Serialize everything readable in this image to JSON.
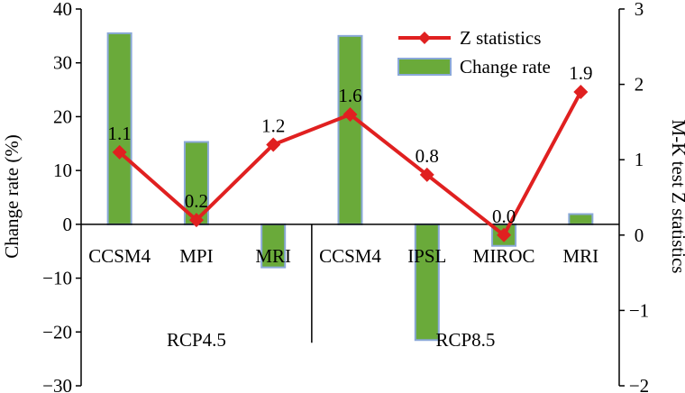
{
  "chart_data": {
    "type": "bar+line",
    "categories": [
      "CCSM4",
      "MPI",
      "MRI",
      "CCSM4",
      "IPSL",
      "MIROC",
      "MRI"
    ],
    "groups": [
      {
        "label": "RCP4.5",
        "span": [
          0,
          2
        ]
      },
      {
        "label": "RCP8.5",
        "span": [
          3,
          6
        ]
      }
    ],
    "series": [
      {
        "name": "Change rate",
        "type": "bar",
        "axis": "left",
        "values": [
          35.5,
          15.3,
          -8.0,
          35.0,
          -21.5,
          -4.0,
          1.9
        ],
        "color": "#6aaa3a",
        "edge": "#8aa8d8"
      },
      {
        "name": "Z statistics",
        "type": "line",
        "axis": "right",
        "values": [
          1.1,
          0.2,
          1.2,
          1.6,
          0.8,
          0.0,
          1.9
        ],
        "labels": [
          "1.1",
          "0.2",
          "1.2",
          "1.6",
          "0.8",
          "0.0",
          "1.9"
        ],
        "color": "#e02020"
      }
    ],
    "ylabel": "Change rate (%)",
    "y2label": "M-K test Z statistics",
    "ylim": [
      -30,
      40
    ],
    "y2lim": [
      -2,
      3
    ],
    "yticks": [
      "−30",
      "−20",
      "−10",
      "0",
      "10",
      "20",
      "30",
      "40"
    ],
    "y2ticks": [
      "−2",
      "−1",
      "0",
      "1",
      "2",
      "3"
    ],
    "legend": "top-right",
    "grid": false
  }
}
